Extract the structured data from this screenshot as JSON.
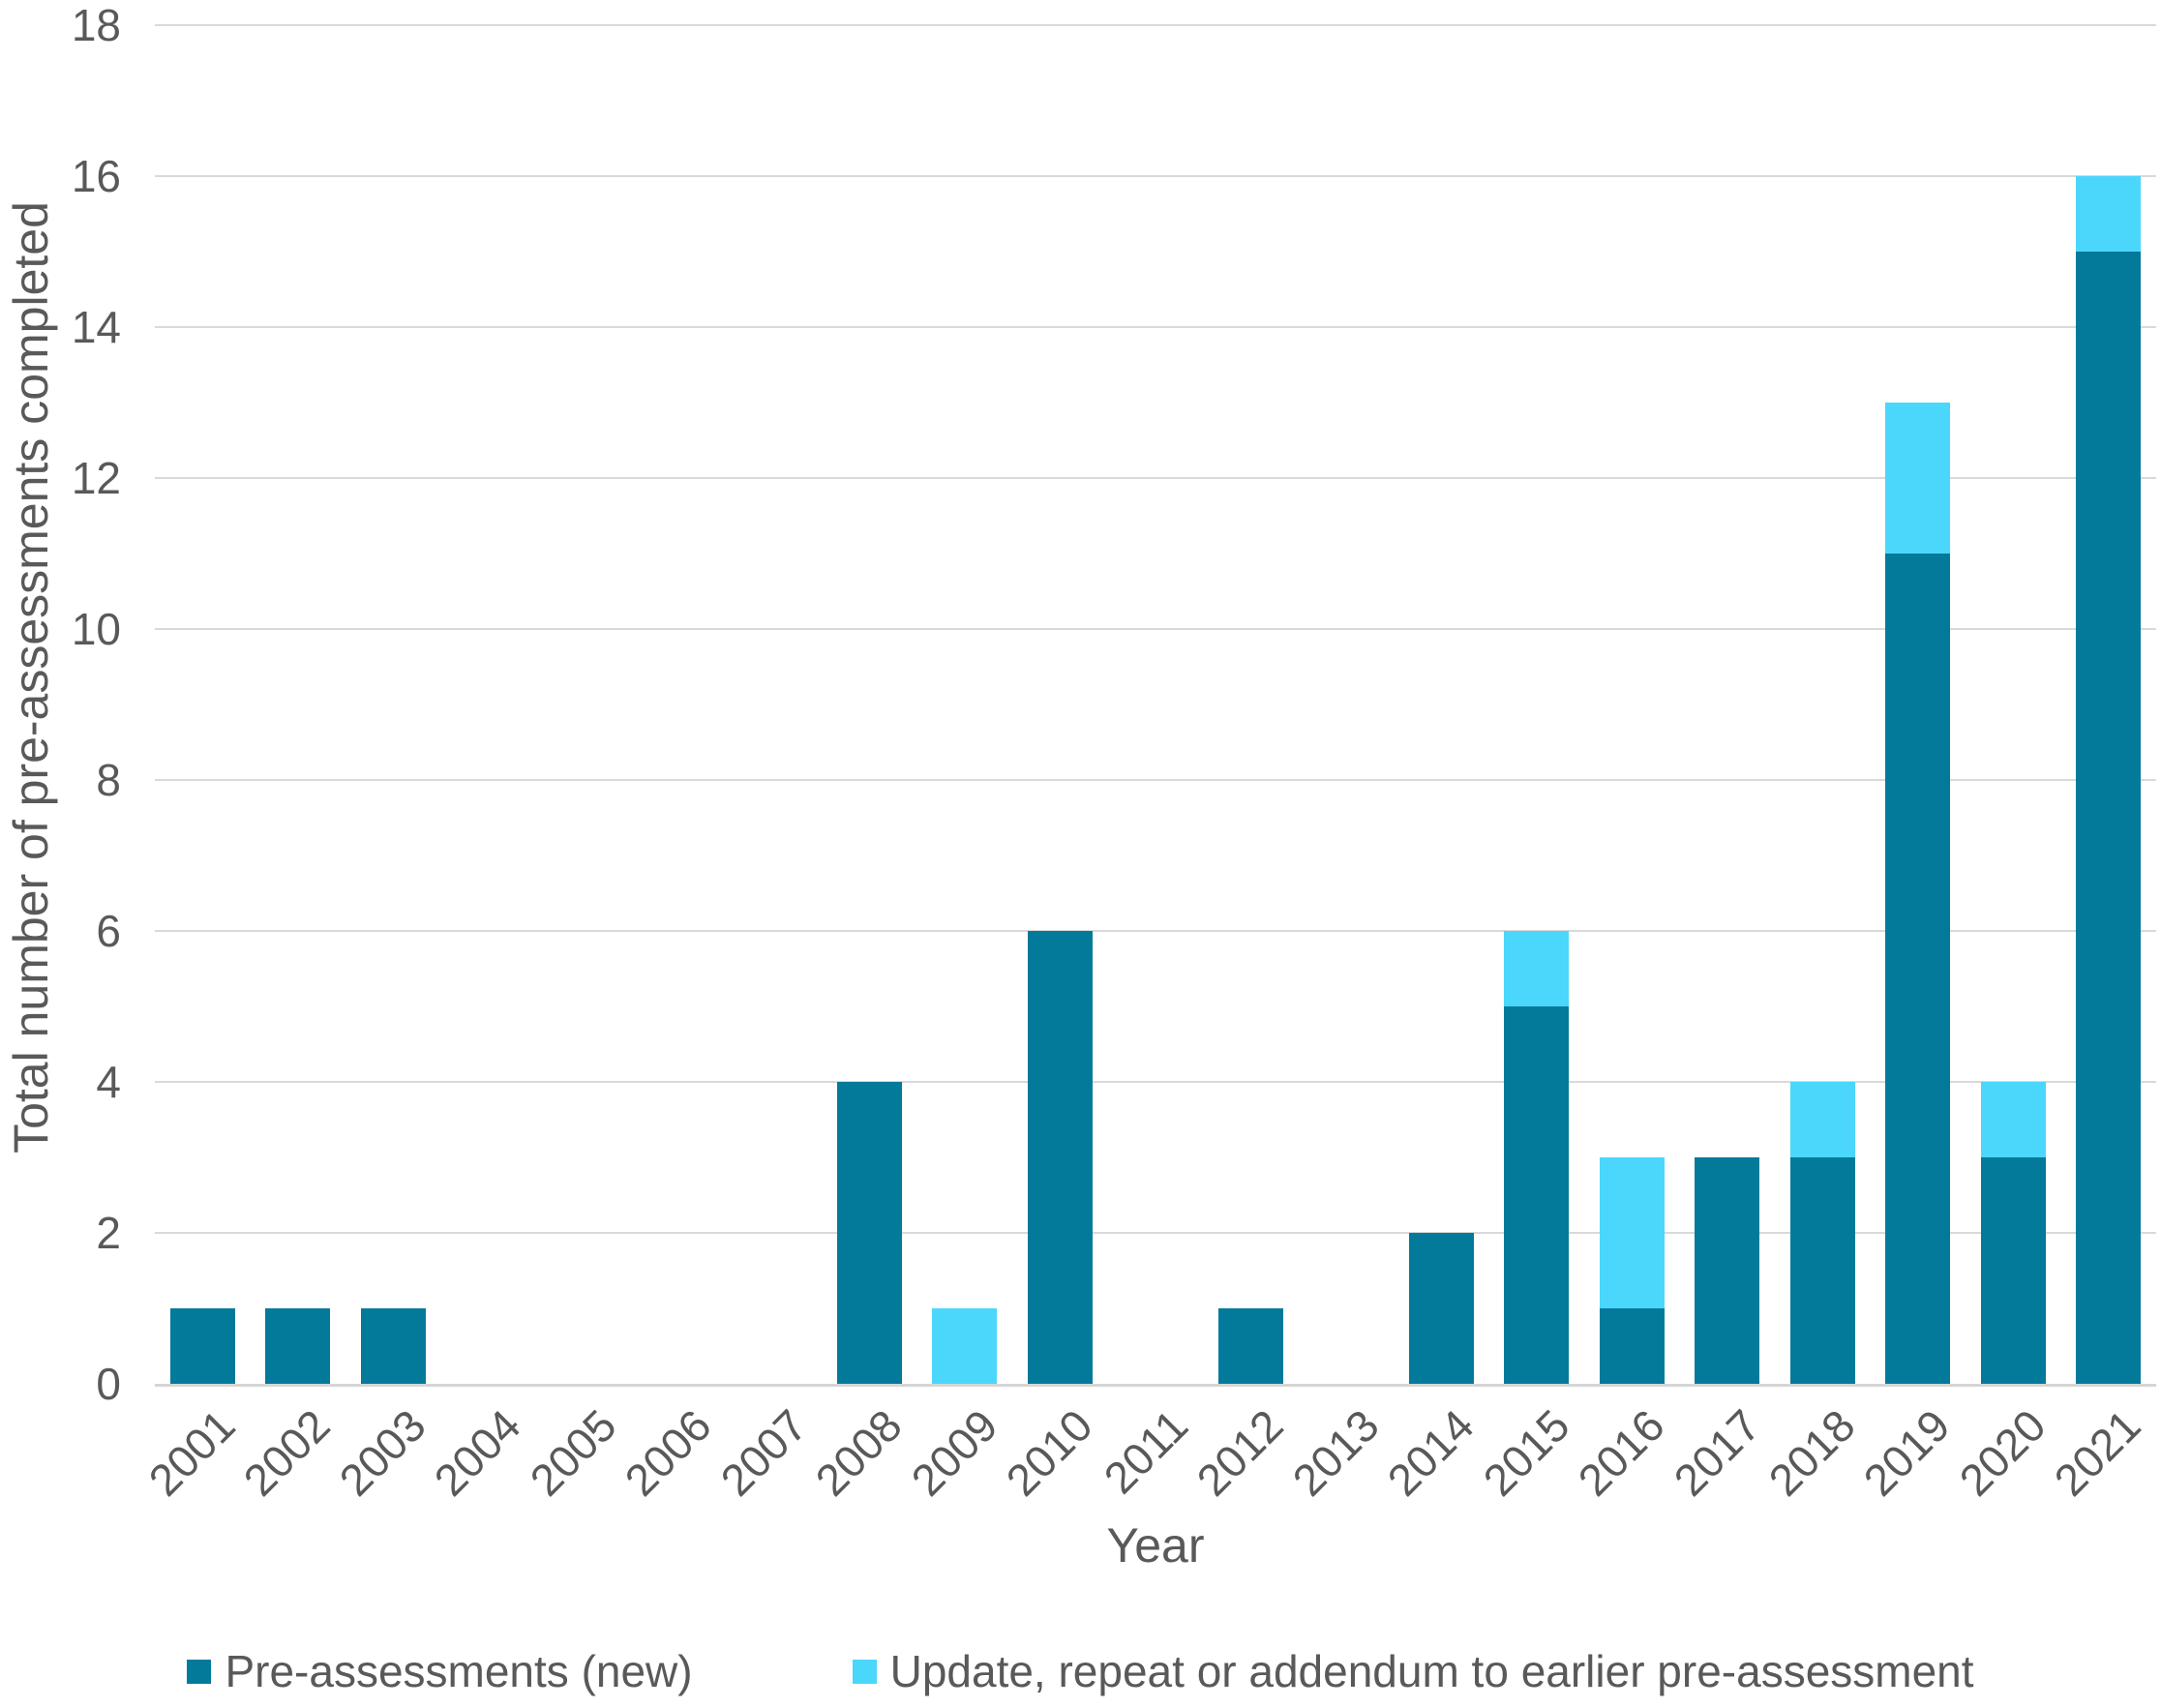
{
  "chart_data": {
    "type": "bar",
    "stacked": true,
    "title": "",
    "xlabel": "Year",
    "ylabel": "Total number of pre-assessments completed",
    "ylim": [
      0,
      18
    ],
    "yticks": [
      0,
      2,
      4,
      6,
      8,
      10,
      12,
      14,
      16,
      18
    ],
    "grid": true,
    "legend_position": "bottom",
    "categories": [
      "2001",
      "2002",
      "2003",
      "2004",
      "2005",
      "2006",
      "2007",
      "2008",
      "2009",
      "2010",
      "2011",
      "2012",
      "2013",
      "2014",
      "2015",
      "2016",
      "2017",
      "2018",
      "2019",
      "2020",
      "2021"
    ],
    "series": [
      {
        "name": "Pre-assessments (new)",
        "color": "#047a9b",
        "values": [
          1,
          1,
          1,
          0,
          0,
          0,
          0,
          4,
          0,
          6,
          0,
          1,
          0,
          2,
          5,
          1,
          3,
          3,
          11,
          3,
          15
        ]
      },
      {
        "name": "Update, repeat or addendum to earlier pre-assessment",
        "color": "#4ad7fb",
        "values": [
          0,
          0,
          0,
          0,
          0,
          0,
          0,
          0,
          1,
          0,
          0,
          0,
          0,
          0,
          1,
          2,
          0,
          1,
          2,
          1,
          1
        ]
      }
    ]
  },
  "colors": {
    "gridline": "#d9d9d9",
    "axis_text": "#595959",
    "background": "#ffffff"
  }
}
